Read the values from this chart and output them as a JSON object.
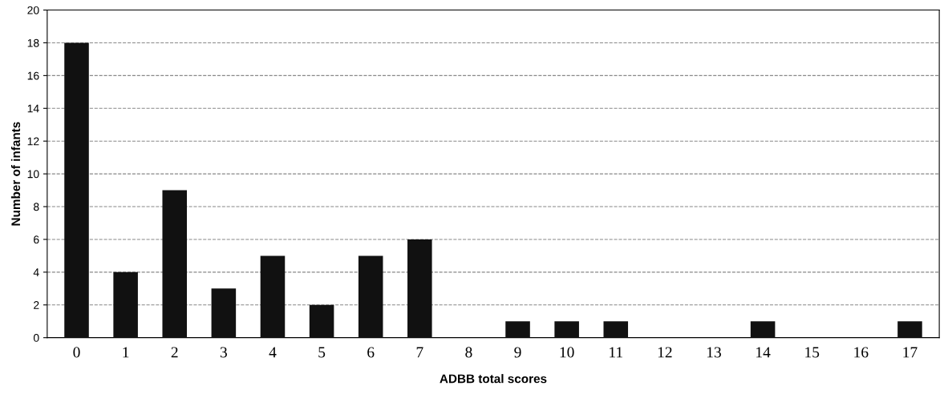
{
  "chart_data": {
    "type": "bar",
    "xlabel": "ADBB total scores",
    "ylabel": "Number of infants",
    "categories": [
      "0",
      "1",
      "2",
      "3",
      "4",
      "5",
      "6",
      "7",
      "8",
      "9",
      "10",
      "11",
      "12",
      "13",
      "14",
      "15",
      "16",
      "17"
    ],
    "values": [
      18,
      4,
      9,
      3,
      5,
      2,
      5,
      6,
      0,
      1,
      1,
      1,
      0,
      0,
      1,
      0,
      0,
      1
    ],
    "color": "#111111",
    "ylim": [
      0,
      20
    ],
    "yticks": [
      0,
      2,
      4,
      6,
      8,
      10,
      12,
      14,
      16,
      18,
      20
    ],
    "grid": "y"
  }
}
